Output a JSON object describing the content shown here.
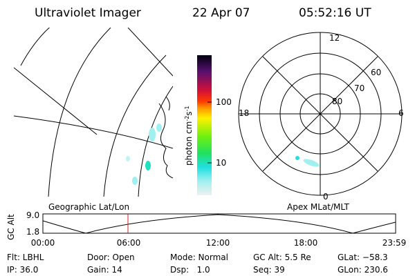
{
  "header": {
    "instrument": "Ultraviolet Imager",
    "date": "22 Apr 07",
    "time": "05:52:16 UT"
  },
  "colorbar": {
    "label": [
      "photon cm",
      "-2",
      "s",
      "-1"
    ],
    "ticks": [
      "100",
      "10"
    ]
  },
  "polar": {
    "mlt_labels": [
      "12",
      "6",
      "0",
      "18"
    ],
    "lat_labels": [
      "60",
      "70",
      "80"
    ]
  },
  "strip": {
    "axis_label": "GC Alt",
    "yticks": [
      "9.0",
      "1.8"
    ],
    "left_title": "Geographic Lat/Lon",
    "right_title": "Apex MLat/MLT",
    "xticks": [
      "00:00",
      "06:00",
      "12:00",
      "18:00",
      "23:59"
    ]
  },
  "info": {
    "rows": [
      [
        "Flt: LBHL",
        "Door: Open",
        "Mode: Normal",
        "GC Alt: 5.5 Re",
        "GLat: −58.3"
      ],
      [
        "IP: 36.0",
        "Gain: 14",
        "Dsp:   1.0",
        "Seq: 39",
        "GLon: 230.6"
      ]
    ]
  }
}
